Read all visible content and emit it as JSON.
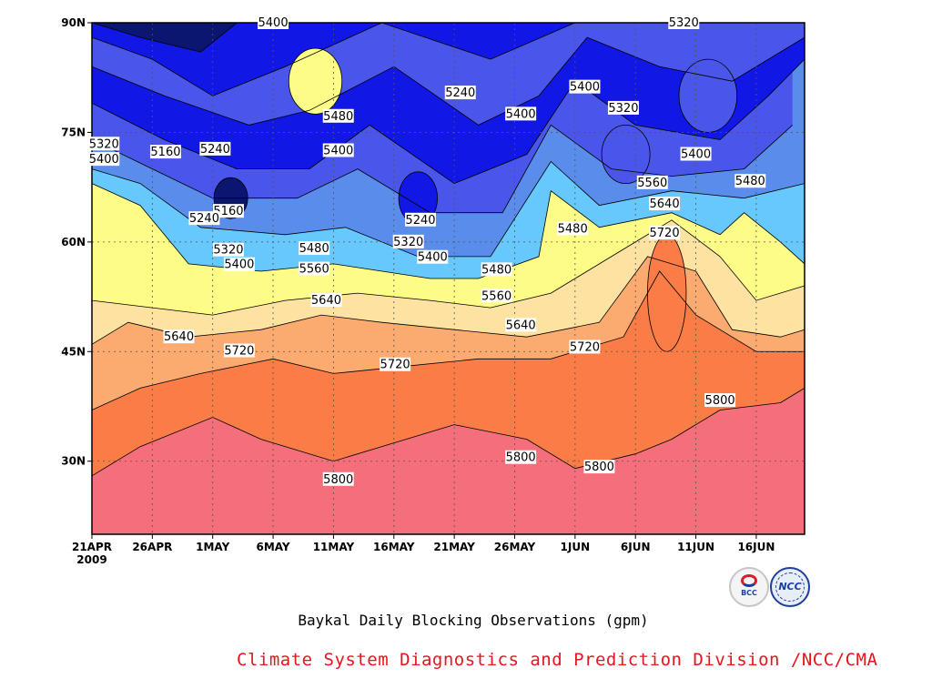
{
  "chart_data": {
    "type": "contour",
    "title": "Baykal Daily Blocking Observations (gpm)",
    "x_axis": {
      "ticks": [
        "21APR",
        "26APR",
        "1MAY",
        "6MAY",
        "11MAY",
        "16MAY",
        "21MAY",
        "26MAY",
        "1JUN",
        "6JUN",
        "11JUN",
        "16JUN"
      ],
      "year_label": "2009",
      "day_range": [
        0,
        59
      ]
    },
    "y_axis": {
      "ticks": [
        "30N",
        "45N",
        "60N",
        "75N",
        "90N"
      ],
      "tick_values": [
        30,
        45,
        60,
        75,
        90
      ],
      "ylim": [
        20,
        90
      ]
    },
    "grid": "dotted",
    "levels": [
      5160,
      5240,
      5320,
      5400,
      5480,
      5560,
      5640,
      5720,
      5800
    ],
    "fill_colors": [
      "#0a1670",
      "#1118e6",
      "#4a55ea",
      "#5a8cec",
      "#66c8fc",
      "#fcfc86",
      "#fde2a2",
      "#fbab70",
      "#fa7c46",
      "#f56e7b"
    ],
    "contour_labels": [
      {
        "text": "5400",
        "day": 15.0,
        "lat": 90.0
      },
      {
        "text": "5320",
        "day": 49.0,
        "lat": 90.0
      },
      {
        "text": "5240",
        "day": 30.5,
        "lat": 80.4
      },
      {
        "text": "5400",
        "day": 40.8,
        "lat": 81.2
      },
      {
        "text": "5320",
        "day": 44.0,
        "lat": 78.3
      },
      {
        "text": "5480",
        "day": 20.4,
        "lat": 77.2
      },
      {
        "text": "5400",
        "day": 35.5,
        "lat": 77.5
      },
      {
        "text": "5320",
        "day": 1.0,
        "lat": 73.4
      },
      {
        "text": "5400",
        "day": 1.0,
        "lat": 71.3
      },
      {
        "text": "5160",
        "day": 6.1,
        "lat": 72.3
      },
      {
        "text": "5240",
        "day": 10.2,
        "lat": 72.7
      },
      {
        "text": "5400",
        "day": 20.4,
        "lat": 72.5
      },
      {
        "text": "5400",
        "day": 50.0,
        "lat": 72.0
      },
      {
        "text": "5480",
        "day": 54.5,
        "lat": 68.3
      },
      {
        "text": "5560",
        "day": 46.4,
        "lat": 68.1
      },
      {
        "text": "5160",
        "day": 11.3,
        "lat": 64.2
      },
      {
        "text": "5240",
        "day": 9.3,
        "lat": 63.2
      },
      {
        "text": "5240",
        "day": 27.2,
        "lat": 63.0
      },
      {
        "text": "5640",
        "day": 47.4,
        "lat": 65.2
      },
      {
        "text": "5480",
        "day": 39.8,
        "lat": 61.8
      },
      {
        "text": "5720",
        "day": 47.4,
        "lat": 61.2
      },
      {
        "text": "5320",
        "day": 26.2,
        "lat": 60.0
      },
      {
        "text": "5480",
        "day": 18.4,
        "lat": 59.1
      },
      {
        "text": "5320",
        "day": 11.3,
        "lat": 58.9
      },
      {
        "text": "5400",
        "day": 28.2,
        "lat": 57.9
      },
      {
        "text": "5400",
        "day": 12.2,
        "lat": 56.9
      },
      {
        "text": "5560",
        "day": 18.4,
        "lat": 56.3
      },
      {
        "text": "5480",
        "day": 33.5,
        "lat": 56.2
      },
      {
        "text": "5560",
        "day": 33.5,
        "lat": 52.6
      },
      {
        "text": "5640",
        "day": 19.4,
        "lat": 52.0
      },
      {
        "text": "5640",
        "day": 35.5,
        "lat": 48.6
      },
      {
        "text": "5640",
        "day": 7.2,
        "lat": 47.0
      },
      {
        "text": "5720",
        "day": 12.2,
        "lat": 45.1
      },
      {
        "text": "5720",
        "day": 40.8,
        "lat": 45.6
      },
      {
        "text": "5720",
        "day": 25.1,
        "lat": 43.2
      },
      {
        "text": "5800",
        "day": 52.0,
        "lat": 38.3
      },
      {
        "text": "5800",
        "day": 35.5,
        "lat": 30.5
      },
      {
        "text": "5800",
        "day": 42.0,
        "lat": 29.2
      },
      {
        "text": "5800",
        "day": 20.4,
        "lat": 27.5
      }
    ]
  },
  "footer": {
    "organization": "Climate System Diagnostics and Prediction Division /NCC/CMA"
  },
  "logos": {
    "bcc_text": "BCC",
    "ncc_text": "NCC"
  }
}
